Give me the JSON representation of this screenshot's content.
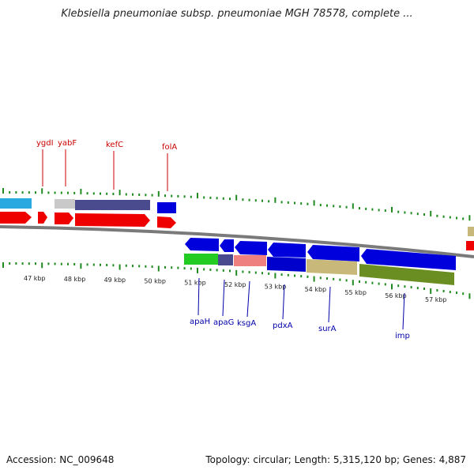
{
  "title": "Klebsiella pneumoniae subsp. pneumoniae MGH 78578, complete ...",
  "footer": {
    "accession": "Accession: NC_009648",
    "summary": "Topology: circular; Length: 5,315,120 bp; Genes: 4,887"
  },
  "colors": {
    "backbone": "#7a7a7a",
    "tick": "#1f8a1f",
    "forward_label": "#cc0000",
    "reverse_label": "#0000aa",
    "kbp_label": "#222222"
  },
  "kbp_labels": [
    "47 kbp",
    "48 kbp",
    "49 kbp",
    "50 kbp",
    "51 kbp",
    "52 kbp",
    "53 kbp",
    "54 kbp",
    "55 kbp",
    "56 kbp",
    "57 kbp"
  ],
  "forward_genes": [
    "ygdI",
    "yabF",
    "kefC",
    "folA"
  ],
  "reverse_genes": [
    "apaH",
    "apaG",
    "ksgA",
    "pdxA",
    "surA",
    "imp"
  ]
}
